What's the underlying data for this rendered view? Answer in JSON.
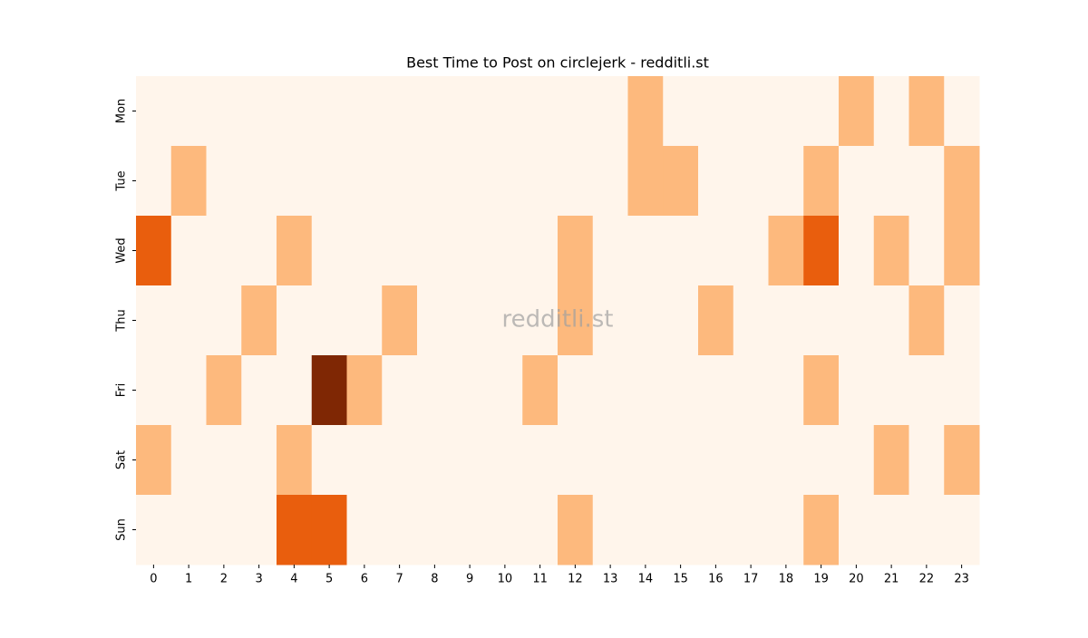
{
  "chart_data": {
    "type": "heatmap",
    "title": "Best Time to Post on circlejerk - redditli.st",
    "watermark": "redditli.st",
    "x": [
      0,
      1,
      2,
      3,
      4,
      5,
      6,
      7,
      8,
      9,
      10,
      11,
      12,
      13,
      14,
      15,
      16,
      17,
      18,
      19,
      20,
      21,
      22,
      23
    ],
    "categories": [
      "Mon",
      "Tue",
      "Wed",
      "Thu",
      "Fri",
      "Sat",
      "Sun"
    ],
    "z": [
      [
        0,
        0,
        0,
        0,
        0,
        0,
        0,
        0,
        0,
        0,
        0,
        0,
        0,
        0,
        1,
        0,
        0,
        0,
        0,
        0,
        1,
        0,
        1,
        0
      ],
      [
        0,
        1,
        0,
        0,
        0,
        0,
        0,
        0,
        0,
        0,
        0,
        0,
        0,
        0,
        1,
        1,
        0,
        0,
        0,
        1,
        0,
        0,
        0,
        1
      ],
      [
        2,
        0,
        0,
        0,
        1,
        0,
        0,
        0,
        0,
        0,
        0,
        0,
        1,
        0,
        0,
        0,
        0,
        0,
        1,
        2,
        0,
        1,
        0,
        1
      ],
      [
        0,
        0,
        0,
        1,
        0,
        0,
        0,
        1,
        0,
        0,
        0,
        0,
        1,
        0,
        0,
        0,
        1,
        0,
        0,
        0,
        0,
        0,
        1,
        0
      ],
      [
        0,
        0,
        1,
        0,
        0,
        3,
        1,
        0,
        0,
        0,
        0,
        1,
        0,
        0,
        0,
        0,
        0,
        0,
        0,
        1,
        0,
        0,
        0,
        0
      ],
      [
        1,
        0,
        0,
        0,
        1,
        0,
        0,
        0,
        0,
        0,
        0,
        0,
        0,
        0,
        0,
        0,
        0,
        0,
        0,
        0,
        0,
        1,
        0,
        1
      ],
      [
        0,
        0,
        0,
        0,
        2,
        2,
        0,
        0,
        0,
        0,
        0,
        0,
        1,
        0,
        0,
        0,
        0,
        0,
        0,
        1,
        0,
        0,
        0,
        0
      ]
    ],
    "colorscale": [
      "#fff5eb",
      "#fdb97d",
      "#e95e0d",
      "#7f2704"
    ]
  }
}
